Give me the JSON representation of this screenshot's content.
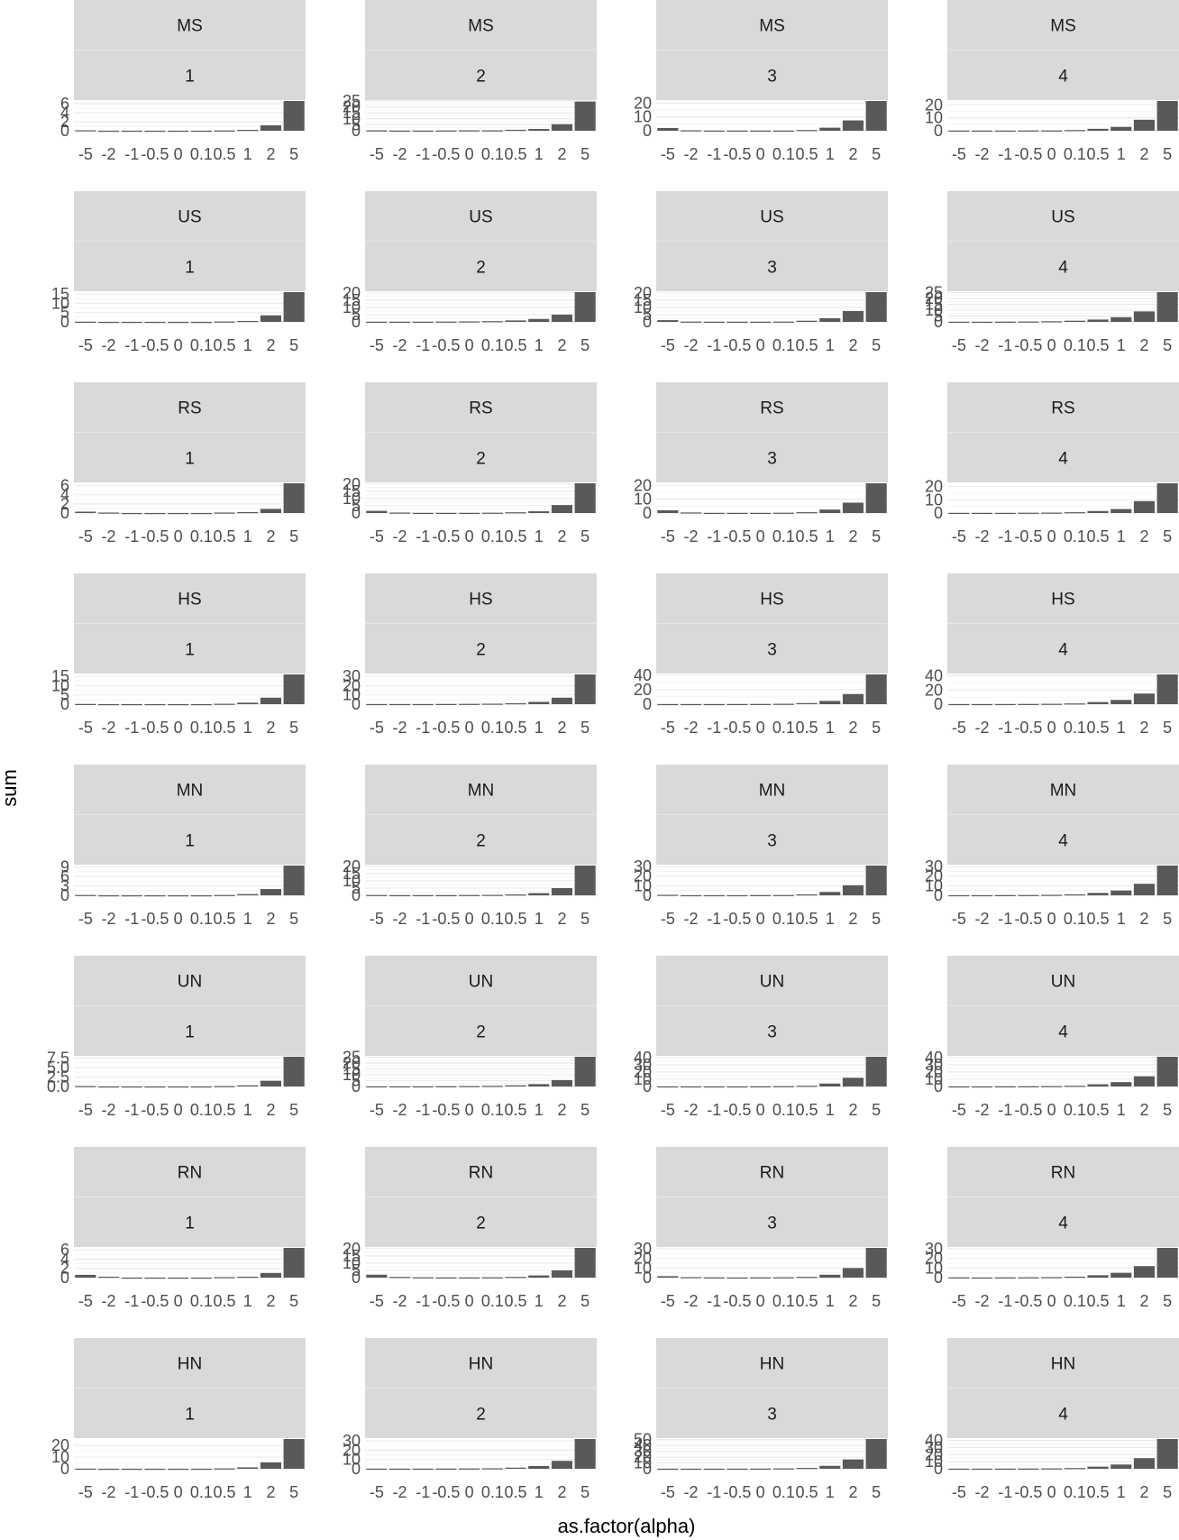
{
  "chart_data": {
    "type": "bar",
    "facet_rows": [
      "MS",
      "US",
      "RS",
      "HS",
      "MN",
      "UN",
      "RN",
      "HN"
    ],
    "facet_cols": [
      "1",
      "2",
      "3",
      "4"
    ],
    "categories": [
      "-5",
      "-2",
      "-1",
      "-0.5",
      "0",
      "0.1",
      "0.5",
      "1",
      "2",
      "5"
    ],
    "xlabel": "as.factor(alpha)",
    "ylabel": "sum",
    "grid": true,
    "panels": [
      {
        "row": "MS",
        "col": "1",
        "values": [
          0.1,
          0.0,
          0.0,
          0.0,
          0.0,
          0.0,
          0.05,
          0.2,
          1.2,
          6.6
        ],
        "yticks": [
          "0",
          "2",
          "4",
          "6"
        ]
      },
      {
        "row": "MS",
        "col": "2",
        "values": [
          0.3,
          0.1,
          0.1,
          0.2,
          0.3,
          0.3,
          0.8,
          1.5,
          5.5,
          24.5
        ],
        "yticks": [
          "0",
          "5",
          "10",
          "15",
          "20",
          "25"
        ]
      },
      {
        "row": "MS",
        "col": "3",
        "values": [
          2.0,
          0.3,
          0.1,
          0.1,
          0.1,
          0.1,
          0.5,
          2.2,
          7.5,
          21.6
        ],
        "yticks": [
          "0",
          "10",
          "20"
        ]
      },
      {
        "row": "MS",
        "col": "4",
        "values": [
          0.1,
          0.1,
          0.1,
          0.2,
          0.2,
          0.5,
          1.5,
          3.0,
          8.5,
          23.0
        ],
        "yticks": [
          "0",
          "10",
          "20"
        ]
      },
      {
        "row": "US",
        "col": "1",
        "values": [
          0.1,
          0.0,
          0.0,
          0.0,
          0.0,
          0.0,
          0.2,
          0.5,
          3.5,
          16.0
        ],
        "yticks": [
          "0",
          "5",
          "10",
          "15"
        ]
      },
      {
        "row": "US",
        "col": "2",
        "values": [
          0.1,
          0.1,
          0.1,
          0.2,
          0.3,
          0.5,
          1.0,
          2.0,
          5.0,
          20.5
        ],
        "yticks": [
          "0",
          "5",
          "10",
          "15",
          "20"
        ]
      },
      {
        "row": "US",
        "col": "3",
        "values": [
          1.2,
          0.2,
          0.1,
          0.1,
          0.1,
          0.2,
          0.8,
          2.5,
          7.5,
          20.5
        ],
        "yticks": [
          "0",
          "5",
          "10",
          "15",
          "20"
        ]
      },
      {
        "row": "US",
        "col": "4",
        "values": [
          0.1,
          0.1,
          0.2,
          0.3,
          0.5,
          1.0,
          2.0,
          4.0,
          9.0,
          25.5
        ],
        "yticks": [
          "0",
          "5",
          "10",
          "15",
          "20",
          "25"
        ]
      },
      {
        "row": "RS",
        "col": "1",
        "values": [
          0.3,
          0.1,
          0.0,
          0.0,
          0.0,
          0.0,
          0.1,
          0.2,
          0.9,
          6.5
        ],
        "yticks": [
          "0",
          "2",
          "4",
          "6"
        ]
      },
      {
        "row": "RS",
        "col": "2",
        "values": [
          1.5,
          0.3,
          0.1,
          0.1,
          0.1,
          0.2,
          0.5,
          1.2,
          5.5,
          20.5
        ],
        "yticks": [
          "0",
          "5",
          "10",
          "15",
          "20"
        ]
      },
      {
        "row": "RS",
        "col": "3",
        "values": [
          2.0,
          0.4,
          0.1,
          0.1,
          0.1,
          0.2,
          0.6,
          2.5,
          7.5,
          21.5
        ],
        "yticks": [
          "0",
          "10",
          "20"
        ]
      },
      {
        "row": "RS",
        "col": "4",
        "values": [
          0.1,
          0.1,
          0.1,
          0.2,
          0.3,
          0.6,
          1.5,
          3.0,
          9.0,
          22.5
        ],
        "yticks": [
          "0",
          "10",
          "20"
        ]
      },
      {
        "row": "HS",
        "col": "1",
        "values": [
          0.1,
          0.0,
          0.0,
          0.0,
          0.0,
          0.0,
          0.2,
          0.8,
          3.5,
          16.0
        ],
        "yticks": [
          "0",
          "5",
          "10",
          "15"
        ]
      },
      {
        "row": "HS",
        "col": "2",
        "values": [
          0.1,
          0.1,
          0.1,
          0.2,
          0.3,
          0.5,
          1.0,
          2.5,
          7.0,
          32.0
        ],
        "yticks": [
          "0",
          "10",
          "20",
          "30"
        ]
      },
      {
        "row": "HS",
        "col": "3",
        "values": [
          0.1,
          0.1,
          0.1,
          0.2,
          0.3,
          0.5,
          1.5,
          4.5,
          14.0,
          41.0
        ],
        "yticks": [
          "0",
          "20",
          "40"
        ]
      },
      {
        "row": "HS",
        "col": "4",
        "values": [
          0.1,
          0.1,
          0.2,
          0.3,
          0.5,
          1.0,
          3.0,
          6.0,
          15.0,
          42.0
        ],
        "yticks": [
          "0",
          "20",
          "40"
        ]
      },
      {
        "row": "MN",
        "col": "1",
        "values": [
          0.1,
          0.0,
          0.0,
          0.0,
          0.0,
          0.0,
          0.1,
          0.4,
          2.0,
          9.5
        ],
        "yticks": [
          "0",
          "3",
          "6",
          "9"
        ]
      },
      {
        "row": "MN",
        "col": "2",
        "values": [
          0.2,
          0.1,
          0.1,
          0.1,
          0.2,
          0.3,
          0.6,
          1.5,
          5.0,
          20.5
        ],
        "yticks": [
          "0",
          "5",
          "10",
          "15",
          "20"
        ]
      },
      {
        "row": "MN",
        "col": "3",
        "values": [
          0.5,
          0.1,
          0.1,
          0.1,
          0.2,
          0.3,
          1.0,
          3.5,
          10.5,
          31.0
        ],
        "yticks": [
          "0",
          "10",
          "20",
          "30"
        ]
      },
      {
        "row": "MN",
        "col": "4",
        "values": [
          0.1,
          0.1,
          0.2,
          0.3,
          0.5,
          1.0,
          2.5,
          5.0,
          12.0,
          31.0
        ],
        "yticks": [
          "0",
          "10",
          "20",
          "30"
        ]
      },
      {
        "row": "UN",
        "col": "1",
        "values": [
          0.1,
          0.0,
          0.0,
          0.0,
          0.0,
          0.0,
          0.1,
          0.3,
          1.5,
          7.8
        ],
        "yticks": [
          "0.0",
          "2.5",
          "5.0",
          "7.5"
        ]
      },
      {
        "row": "UN",
        "col": "2",
        "values": [
          0.1,
          0.1,
          0.1,
          0.2,
          0.3,
          0.5,
          1.0,
          2.0,
          5.5,
          25.5
        ],
        "yticks": [
          "0",
          "5",
          "10",
          "15",
          "20",
          "25"
        ]
      },
      {
        "row": "UN",
        "col": "3",
        "values": [
          0.1,
          0.1,
          0.1,
          0.1,
          0.2,
          0.4,
          1.0,
          4.0,
          12.0,
          41.0
        ],
        "yticks": [
          "0",
          "10",
          "20",
          "30",
          "40"
        ]
      },
      {
        "row": "UN",
        "col": "4",
        "values": [
          0.1,
          0.1,
          0.2,
          0.3,
          0.5,
          1.0,
          3.0,
          6.0,
          14.0,
          41.0
        ],
        "yticks": [
          "0",
          "10",
          "20",
          "30",
          "40"
        ]
      },
      {
        "row": "RN",
        "col": "1",
        "values": [
          0.6,
          0.2,
          0.0,
          0.0,
          0.0,
          0.0,
          0.1,
          0.2,
          1.0,
          6.4
        ],
        "yticks": [
          "0",
          "2",
          "4",
          "6"
        ]
      },
      {
        "row": "RN",
        "col": "2",
        "values": [
          2.0,
          0.5,
          0.2,
          0.1,
          0.1,
          0.2,
          0.5,
          1.5,
          5.0,
          20.5
        ],
        "yticks": [
          "0",
          "5",
          "10",
          "15",
          "20"
        ]
      },
      {
        "row": "RN",
        "col": "3",
        "values": [
          1.5,
          0.5,
          0.2,
          0.1,
          0.2,
          0.3,
          0.8,
          3.0,
          10.0,
          31.0
        ],
        "yticks": [
          "0",
          "10",
          "20",
          "30"
        ]
      },
      {
        "row": "RN",
        "col": "4",
        "values": [
          0.2,
          0.1,
          0.2,
          0.3,
          0.5,
          1.0,
          2.5,
          5.0,
          12.0,
          31.0
        ],
        "yticks": [
          "0",
          "10",
          "20",
          "30"
        ]
      },
      {
        "row": "HN",
        "col": "1",
        "values": [
          0.1,
          0.0,
          0.0,
          0.0,
          0.0,
          0.0,
          0.3,
          1.2,
          5.5,
          25.5
        ],
        "yticks": [
          "0",
          "10",
          "20"
        ]
      },
      {
        "row": "HN",
        "col": "2",
        "values": [
          0.1,
          0.1,
          0.1,
          0.2,
          0.3,
          0.5,
          1.2,
          3.0,
          8.5,
          32.0
        ],
        "yticks": [
          "0",
          "10",
          "20",
          "30"
        ]
      },
      {
        "row": "HN",
        "col": "3",
        "values": [
          0.1,
          0.1,
          0.1,
          0.2,
          0.3,
          0.6,
          1.5,
          5.0,
          16.0,
          51.0
        ],
        "yticks": [
          "0",
          "10",
          "20",
          "30",
          "40",
          "50"
        ]
      },
      {
        "row": "HN",
        "col": "4",
        "values": [
          0.1,
          0.1,
          0.2,
          0.3,
          0.5,
          1.0,
          3.0,
          6.0,
          15.0,
          42.0
        ],
        "yticks": [
          "0",
          "10",
          "20",
          "30",
          "40"
        ]
      }
    ]
  }
}
